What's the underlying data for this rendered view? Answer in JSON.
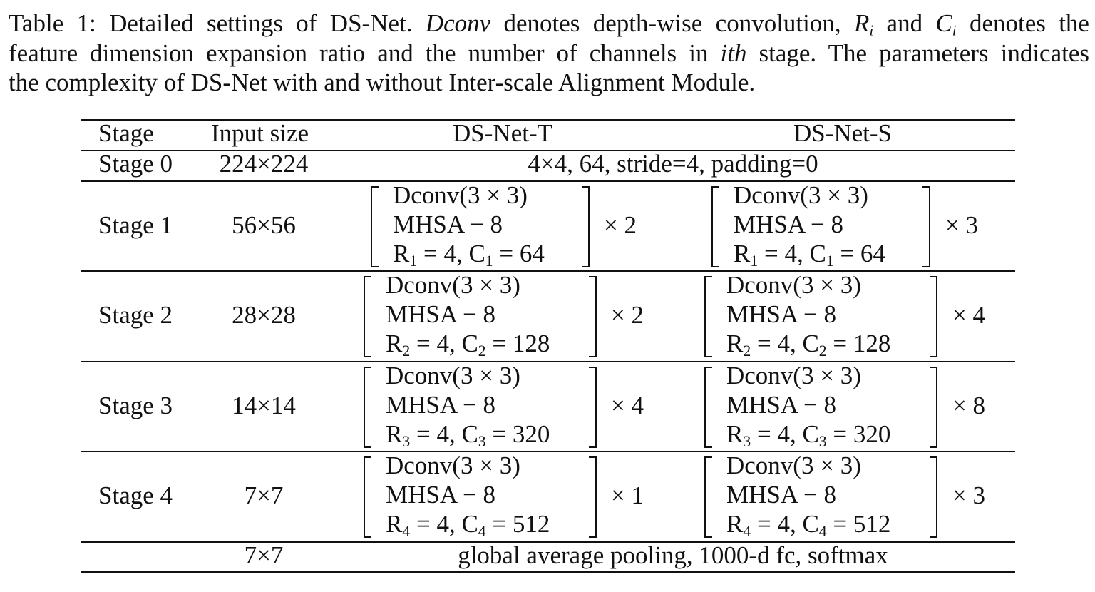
{
  "caption": {
    "line1_a": "Table 1: Detailed settings of DS-Net. ",
    "line1_dconv": "Dconv",
    "line1_b": " denotes depth-wise convolution, ",
    "line1_r": "R",
    "line1_sub_i1": "i",
    "line1_and": " and ",
    "line1_c": "C",
    "line1_sub_i2": "i",
    "line1_c_tail": " denotes the",
    "line2_a": "feature dimension expansion ratio and the number of channels in ",
    "line2_ith": "ith",
    "line2_b": " stage. The parameters indicates",
    "line3": "the complexity of DS-Net with and without Inter-scale Alignment Module."
  },
  "table": {
    "headers": {
      "stage": "Stage",
      "input_size": "Input size",
      "t": "DS-Net-T",
      "s": "DS-Net-S"
    },
    "stage0": {
      "stage": "Stage 0",
      "input": "224×224",
      "spec": "4×4, 64, stride=4, padding=0"
    },
    "rows": [
      {
        "stage": "Stage 1",
        "input": "56×56",
        "t": {
          "l1": "Dconv(3 × 3)",
          "l2": "MHSA − 8",
          "r": "R",
          "rsub": "1",
          "mid": " = 4, C",
          "csub": "1",
          "cval": " = 64",
          "mult": "× 2"
        },
        "s": {
          "l1": "Dconv(3 × 3)",
          "l2": "MHSA − 8",
          "r": "R",
          "rsub": "1",
          "mid": " = 4, C",
          "csub": "1",
          "cval": " = 64",
          "mult": "× 3"
        }
      },
      {
        "stage": "Stage 2",
        "input": "28×28",
        "t": {
          "l1": "Dconv(3 × 3)",
          "l2": "MHSA − 8",
          "r": "R",
          "rsub": "2",
          "mid": " = 4, C",
          "csub": "2",
          "cval": " = 128",
          "mult": "× 2"
        },
        "s": {
          "l1": "Dconv(3 × 3)",
          "l2": "MHSA − 8",
          "r": "R",
          "rsub": "2",
          "mid": " = 4, C",
          "csub": "2",
          "cval": " = 128",
          "mult": "× 4"
        }
      },
      {
        "stage": "Stage 3",
        "input": "14×14",
        "t": {
          "l1": "Dconv(3 × 3)",
          "l2": "MHSA − 8",
          "r": "R",
          "rsub": "3",
          "mid": " = 4, C",
          "csub": "3",
          "cval": " = 320",
          "mult": "× 4"
        },
        "s": {
          "l1": "Dconv(3 × 3)",
          "l2": "MHSA − 8",
          "r": "R",
          "rsub": "3",
          "mid": " = 4, C",
          "csub": "3",
          "cval": " = 320",
          "mult": "× 8"
        }
      },
      {
        "stage": "Stage 4",
        "input": "7×7",
        "t": {
          "l1": "Dconv(3 × 3)",
          "l2": "MHSA − 8",
          "r": "R",
          "rsub": "4",
          "mid": " = 4, C",
          "csub": "4",
          "cval": " = 512",
          "mult": "× 1"
        },
        "s": {
          "l1": "Dconv(3 × 3)",
          "l2": "MHSA − 8",
          "r": "R",
          "rsub": "4",
          "mid": " = 4, C",
          "csub": "4",
          "cval": " = 512",
          "mult": "× 3"
        }
      }
    ],
    "final": {
      "input": "7×7",
      "spec": "global average pooling, 1000-d fc, softmax"
    }
  }
}
